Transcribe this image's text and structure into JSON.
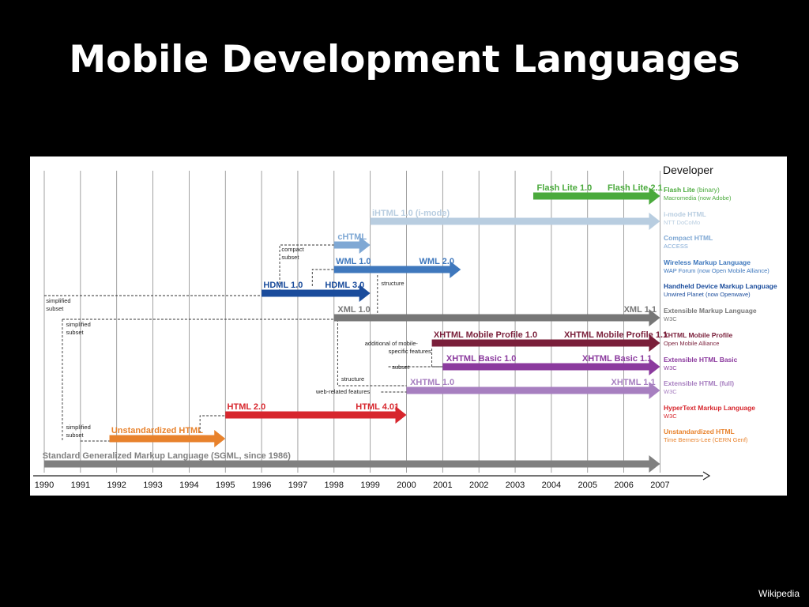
{
  "slide": {
    "title": "Mobile Development Languages",
    "source": "Wikipedia"
  },
  "legend_header": "Developer",
  "years": [
    "1990",
    "1991",
    "1992",
    "1993",
    "1994",
    "1995",
    "1996",
    "1997",
    "1998",
    "1999",
    "2000",
    "2001",
    "2002",
    "2003",
    "2004",
    "2005",
    "2006",
    "2007"
  ],
  "legend": [
    {
      "name": "Flash Lite",
      "suffix": " (binary)",
      "org": "Macromedia (now Adobe)",
      "color": "#4aaa3c"
    },
    {
      "name": "i-mode HTML",
      "suffix": "",
      "org": "NTT DoCoMo",
      "color": "#b8cde0"
    },
    {
      "name": "Compact HTML",
      "suffix": "",
      "org": "ACCESS",
      "color": "#7fa8d4"
    },
    {
      "name": "Wireless Markup Language",
      "suffix": "",
      "org": "WAP Forum (now Open Mobile Alliance)",
      "color": "#3f78bd"
    },
    {
      "name": "Handheld Device Markup Language",
      "suffix": "",
      "org": "Unwired Planet (now Openwave)",
      "color": "#1a4c9c"
    },
    {
      "name": "Extensible Markup Language",
      "suffix": "",
      "org": "W3C",
      "color": "#777777"
    },
    {
      "name": "XHTML Mobile Profile",
      "suffix": "",
      "org": "Open Mobile Alliance",
      "color": "#7a1f3a"
    },
    {
      "name": "Extensible HTML Basic",
      "suffix": "",
      "org": "W3C",
      "color": "#8b3a9e"
    },
    {
      "name": "Extensible HTML (full)",
      "suffix": "",
      "org": "W3C",
      "color": "#a77fc0"
    },
    {
      "name": "HyperText Markup Language",
      "suffix": "",
      "org": "W3C",
      "color": "#d7262d"
    },
    {
      "name": "Unstandardized HTML",
      "suffix": "",
      "org": "Time Berners-Lee (CERN Genf)",
      "color": "#e8822c"
    }
  ],
  "bars": [
    {
      "id": "flash-lite",
      "color": "#4aaa3c",
      "start": 2003.5,
      "end": 2007.0,
      "labels": [
        {
          "text": "Flash Lite 1.0",
          "x": 2003.6
        },
        {
          "text": "Flash Lite 2.1",
          "x": 2005.55
        }
      ]
    },
    {
      "id": "ihtml",
      "color": "#b8cde0",
      "start": 1999.0,
      "end": 2007.0,
      "labels": [
        {
          "text": "iHTML 1.0 (i-mode)",
          "x": 1999.05
        }
      ]
    },
    {
      "id": "chtml",
      "color": "#7fa8d4",
      "start": 1998.0,
      "end": 1999.0,
      "labels": [
        {
          "text": "cHTML",
          "x": 1998.1
        }
      ]
    },
    {
      "id": "wml",
      "color": "#3f78bd",
      "start": 1998.0,
      "end": 2001.5,
      "labels": [
        {
          "text": "WML 1.0",
          "x": 1998.05
        },
        {
          "text": "WML 2.0",
          "x": 2000.35
        }
      ]
    },
    {
      "id": "hdml",
      "color": "#1a4c9c",
      "start": 1996.0,
      "end": 1999.0,
      "labels": [
        {
          "text": "HDML 1.0",
          "x": 1996.05
        },
        {
          "text": "HDML 3.0",
          "x": 1997.75
        }
      ]
    },
    {
      "id": "xml",
      "color": "#777777",
      "start": 1998.0,
      "end": 2007.0,
      "labels": [
        {
          "text": "XML 1.0",
          "x": 1998.1
        },
        {
          "text": "XML 1.1",
          "x": 2006.0
        }
      ]
    },
    {
      "id": "xhtml-mp",
      "color": "#7a1f3a",
      "start": 2000.7,
      "end": 2007.0,
      "labels": [
        {
          "text": "XHTML Mobile Profile 1.0",
          "x": 2000.75
        },
        {
          "text": "XHTML Mobile Profile 1.1",
          "x": 2004.35
        }
      ]
    },
    {
      "id": "xhtml-basic",
      "color": "#8b3a9e",
      "start": 2001.0,
      "end": 2007.0,
      "labels": [
        {
          "text": "XHTML Basic 1.0",
          "x": 2001.1
        },
        {
          "text": "XHTML Basic 1.1",
          "x": 2004.85
        }
      ]
    },
    {
      "id": "xhtml-full",
      "color": "#a77fc0",
      "start": 2000.0,
      "end": 2007.0,
      "labels": [
        {
          "text": "XHTML 1.0",
          "x": 2000.1
        },
        {
          "text": "XHTML 1.1",
          "x": 2005.65
        }
      ]
    },
    {
      "id": "html",
      "color": "#d7262d",
      "start": 1995.0,
      "end": 2000.0,
      "labels": [
        {
          "text": "HTML 2.0",
          "x": 1995.05
        },
        {
          "text": "HTML 4.01",
          "x": 1998.6
        }
      ]
    },
    {
      "id": "unstd-html",
      "color": "#e8822c",
      "start": 1991.8,
      "end": 1995.0,
      "labels": [
        {
          "text": "Unstandardized HTML",
          "x": 1991.85
        }
      ]
    },
    {
      "id": "sgml",
      "color": "#808080",
      "start": 1990.0,
      "end": 2007.0,
      "labels": [
        {
          "text": "Standard Generalized Markup Language (SGML, since 1986)",
          "x": 1989.95
        }
      ]
    }
  ],
  "notes": {
    "compact_subset": [
      "compact",
      "subset"
    ],
    "structure": "structure",
    "simplified_subset": [
      "simplified",
      "subset"
    ],
    "additional_features": [
      "additional of mobile-",
      "specific features"
    ],
    "subset": "subset",
    "web_related": "web-related features"
  }
}
